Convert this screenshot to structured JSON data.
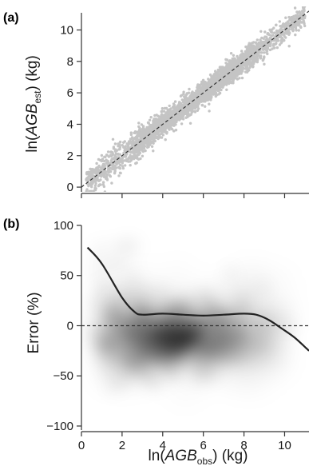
{
  "chart_data": [
    {
      "type": "scatter",
      "panel_label": "(a)",
      "ylabel_prefix": "ln(",
      "ylabel_main": "AGB",
      "ylabel_sub": "est",
      "ylabel_suffix": ")  (kg)",
      "xlim": [
        0,
        11.2
      ],
      "ylim": [
        -0.3,
        11.5
      ],
      "yticks": [
        "0",
        "2",
        "4",
        "6",
        "8",
        "10"
      ],
      "xticks_shown": false,
      "reference_line": {
        "style": "dashed",
        "from": [
          0,
          0
        ],
        "to": [
          11.2,
          11.2
        ]
      },
      "point_color": "#c4c4c4",
      "points_description_free": true,
      "trend": {
        "x_start": 0.2,
        "x_end": 11.0,
        "scatter_sd": 0.35,
        "n_points": 3200
      }
    },
    {
      "type": "heatmap",
      "panel_label": "(b)",
      "ylabel": "Error (%)",
      "xlabel_prefix": "ln(",
      "xlabel_main": "AGB",
      "xlabel_sub": "obs",
      "xlabel_suffix": ")  (kg)",
      "xlim": [
        0,
        11.2
      ],
      "ylim": [
        -104,
        100
      ],
      "xticks": [
        "0",
        "2",
        "4",
        "6",
        "8",
        "10"
      ],
      "yticks": [
        "100",
        "50",
        "0",
        "−50",
        "−100"
      ],
      "reference_line": {
        "style": "dashed",
        "y": 0
      },
      "density_color": "#111111",
      "density_peak": {
        "x": 4.5,
        "y": -12
      },
      "smooth_curve": {
        "x": [
          0.3,
          1.0,
          2.0,
          2.6,
          3.0,
          4.0,
          5.0,
          6.0,
          7.0,
          8.0,
          8.6,
          9.2,
          9.8,
          10.5,
          11.2
        ],
        "y": [
          78,
          62,
          28,
          14,
          11,
          12,
          11,
          10,
          11,
          12,
          11,
          6,
          -2,
          -12,
          -25
        ]
      }
    }
  ]
}
